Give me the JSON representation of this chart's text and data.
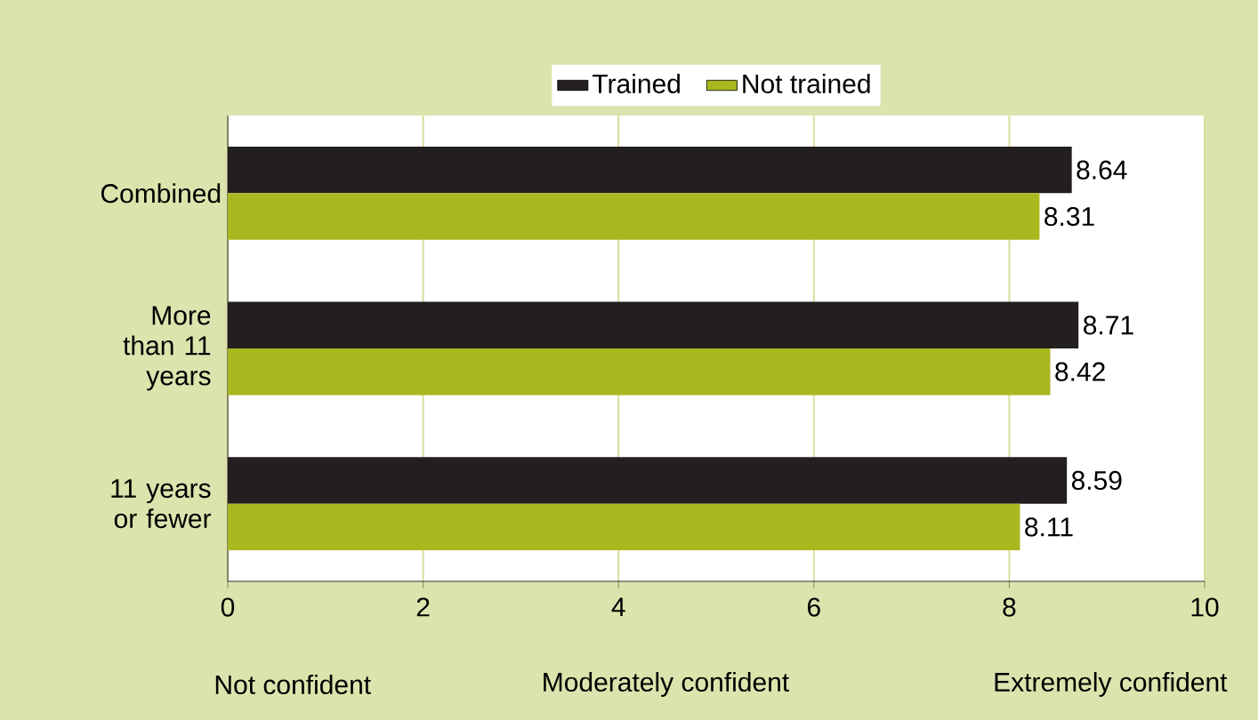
{
  "chart_data": {
    "type": "bar",
    "orientation": "horizontal",
    "categories": [
      "Combined",
      "More than 11 years",
      "11 years or fewer"
    ],
    "series": [
      {
        "name": "Trained",
        "color": "#231f20",
        "values": [
          8.64,
          8.71,
          8.59
        ]
      },
      {
        "name": "Not trained",
        "color": "#a9b81e",
        "values": [
          8.31,
          8.42,
          8.11
        ]
      }
    ],
    "xlim": [
      0,
      10
    ],
    "xticks": [
      0,
      2,
      4,
      6,
      8,
      10
    ],
    "grid": "x",
    "legend": "top",
    "data_labels": true,
    "annotations": [
      "Not confident",
      "Moderately confident",
      "Extremely confident"
    ]
  }
}
